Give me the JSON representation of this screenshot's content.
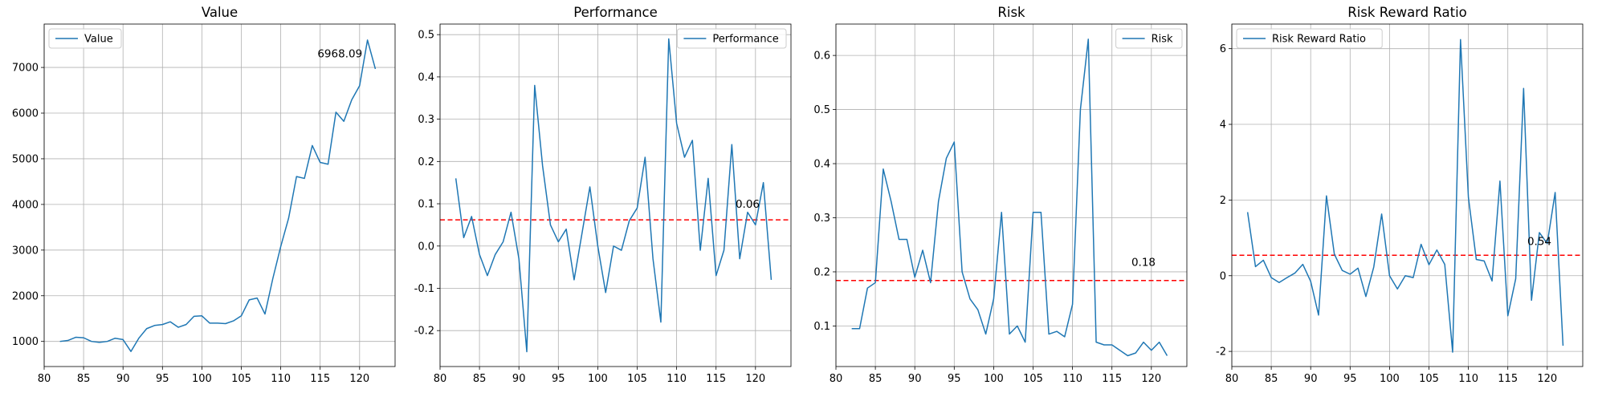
{
  "chart_data": [
    {
      "type": "line",
      "title": "Value",
      "xlim": [
        80,
        124.5
      ],
      "ylim": [
        450,
        7950
      ],
      "xticks": [
        80,
        85,
        90,
        95,
        100,
        105,
        110,
        115,
        120
      ],
      "yticks": [
        1000,
        2000,
        3000,
        4000,
        5000,
        6000,
        7000
      ],
      "grid": true,
      "legend_position": "upper left",
      "color": "#1f77b4",
      "series": [
        {
          "name": "Value",
          "x": [
            82,
            83,
            84,
            85,
            86,
            87,
            88,
            89,
            90,
            91,
            92,
            93,
            94,
            95,
            96,
            97,
            98,
            99,
            100,
            101,
            102,
            103,
            104,
            105,
            106,
            107,
            108,
            109,
            110,
            111,
            112,
            113,
            114,
            115,
            116,
            117,
            118,
            119,
            120,
            121,
            122
          ],
          "values": [
            1000,
            1020,
            1090,
            1080,
            1000,
            980,
            1000,
            1070,
            1040,
            780,
            1070,
            1280,
            1350,
            1370,
            1430,
            1310,
            1370,
            1550,
            1560,
            1400,
            1400,
            1390,
            1450,
            1560,
            1910,
            1950,
            1600,
            2380,
            3080,
            3700,
            4610,
            4570,
            5290,
            4920,
            4880,
            6020,
            5820,
            6290,
            6600,
            7600,
            6968.09
          ]
        }
      ],
      "annotation": {
        "text": "6968.09",
        "x": 117.5,
        "y": 7290
      }
    },
    {
      "type": "line",
      "title": "Performance",
      "xlim": [
        80,
        124.5
      ],
      "ylim": [
        -0.285,
        0.525
      ],
      "xticks": [
        80,
        85,
        90,
        95,
        100,
        105,
        110,
        115,
        120
      ],
      "yticks": [
        -0.2,
        -0.1,
        0.0,
        0.1,
        0.2,
        0.3,
        0.4,
        0.5
      ],
      "grid": true,
      "legend_position": "upper right",
      "color": "#1f77b4",
      "mean_line": {
        "y": 0.062,
        "color": "#ff0000"
      },
      "series": [
        {
          "name": "Performance",
          "x": [
            82,
            83,
            84,
            85,
            86,
            87,
            88,
            89,
            90,
            91,
            92,
            93,
            94,
            95,
            96,
            97,
            98,
            99,
            100,
            101,
            102,
            103,
            104,
            105,
            106,
            107,
            108,
            109,
            110,
            111,
            112,
            113,
            114,
            115,
            116,
            117,
            118,
            119,
            120,
            121,
            122
          ],
          "values": [
            0.16,
            0.02,
            0.07,
            -0.02,
            -0.07,
            -0.02,
            0.01,
            0.08,
            -0.03,
            -0.25,
            0.38,
            0.19,
            0.05,
            0.01,
            0.04,
            -0.08,
            0.03,
            0.14,
            0.0,
            -0.11,
            0.0,
            -0.01,
            0.06,
            0.09,
            0.21,
            -0.03,
            -0.18,
            0.49,
            0.29,
            0.21,
            0.25,
            -0.01,
            0.16,
            -0.07,
            -0.01,
            0.24,
            -0.03,
            0.08,
            0.05,
            0.15,
            -0.08
          ]
        }
      ],
      "annotation": {
        "text": "0.06",
        "x": 119,
        "y": 0.098
      }
    },
    {
      "type": "line",
      "title": "Risk",
      "xlim": [
        80,
        124.5
      ],
      "ylim": [
        0.025,
        0.658
      ],
      "xticks": [
        80,
        85,
        90,
        95,
        100,
        105,
        110,
        115,
        120
      ],
      "yticks": [
        0.1,
        0.2,
        0.3,
        0.4,
        0.5,
        0.6
      ],
      "grid": true,
      "legend_position": "upper right",
      "color": "#1f77b4",
      "mean_line": {
        "y": 0.184,
        "color": "#ff0000"
      },
      "series": [
        {
          "name": "Risk",
          "x": [
            82,
            83,
            84,
            85,
            86,
            87,
            88,
            89,
            90,
            91,
            92,
            93,
            94,
            95,
            96,
            97,
            98,
            99,
            100,
            101,
            102,
            103,
            104,
            105,
            106,
            107,
            108,
            109,
            110,
            111,
            112,
            113,
            114,
            115,
            116,
            117,
            118,
            119,
            120,
            121,
            122
          ],
          "values": [
            0.095,
            0.095,
            0.17,
            0.18,
            0.39,
            0.33,
            0.26,
            0.26,
            0.19,
            0.24,
            0.18,
            0.33,
            0.41,
            0.44,
            0.2,
            0.15,
            0.13,
            0.085,
            0.15,
            0.31,
            0.085,
            0.1,
            0.07,
            0.31,
            0.31,
            0.085,
            0.09,
            0.08,
            0.14,
            0.5,
            0.63,
            0.07,
            0.065,
            0.065,
            0.055,
            0.045,
            0.05,
            0.07,
            0.055,
            0.07,
            0.045
          ]
        }
      ],
      "annotation": {
        "text": "0.18",
        "x": 119,
        "y": 0.217
      }
    },
    {
      "type": "line",
      "title": "Risk Reward Ratio",
      "xlim": [
        80,
        124.5
      ],
      "ylim": [
        -2.4,
        6.65
      ],
      "xticks": [
        80,
        85,
        90,
        95,
        100,
        105,
        110,
        115,
        120
      ],
      "yticks": [
        -2,
        0,
        2,
        4,
        6
      ],
      "grid": true,
      "legend_position": "upper left",
      "color": "#1f77b4",
      "mean_line": {
        "y": 0.54,
        "color": "#ff0000"
      },
      "series": [
        {
          "name": "Risk Reward Ratio",
          "x": [
            82,
            83,
            84,
            85,
            86,
            87,
            88,
            89,
            90,
            91,
            92,
            93,
            94,
            95,
            96,
            97,
            98,
            99,
            100,
            101,
            102,
            103,
            104,
            105,
            106,
            107,
            108,
            109,
            110,
            111,
            112,
            113,
            114,
            115,
            116,
            117,
            118,
            119,
            120,
            121,
            122
          ],
          "values": [
            1.68,
            0.24,
            0.41,
            -0.05,
            -0.18,
            -0.05,
            0.07,
            0.3,
            -0.15,
            -1.04,
            2.11,
            0.57,
            0.14,
            0.04,
            0.2,
            -0.55,
            0.23,
            1.63,
            0.0,
            -0.35,
            0.0,
            -0.05,
            0.83,
            0.29,
            0.68,
            0.3,
            -2.02,
            6.24,
            2.07,
            0.43,
            0.39,
            -0.14,
            2.5,
            -1.06,
            -0.08,
            4.95,
            -0.65,
            1.14,
            0.85,
            2.2,
            -1.85
          ]
        }
      ],
      "annotation": {
        "text": "0.54",
        "x": 119,
        "y": 0.9
      }
    }
  ]
}
